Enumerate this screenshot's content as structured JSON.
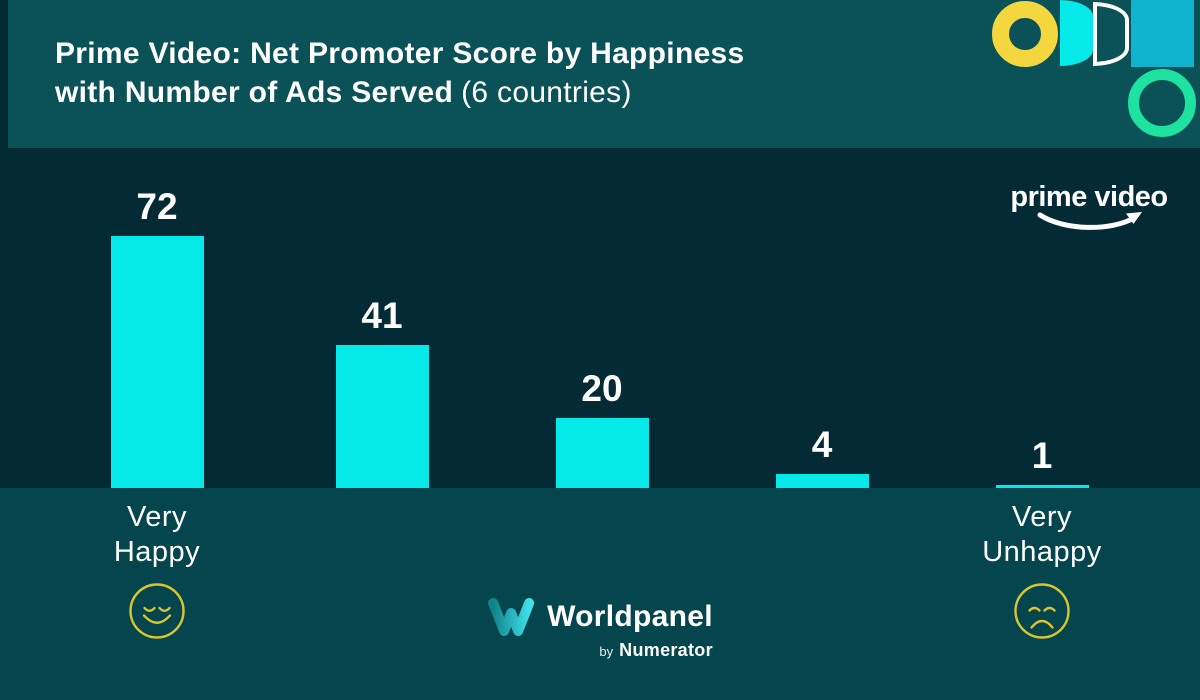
{
  "header": {
    "title_line1": "Prime Video: Net Promoter Score by Happiness",
    "title_line2_bold": "with Number of Ads Served",
    "title_line2_regular": "(6 countries)"
  },
  "chart_data": {
    "type": "bar",
    "title": "Prime Video: Net Promoter Score by Happiness with Number of Ads Served (6 countries)",
    "categories": [
      "Very Happy",
      "",
      "",
      "",
      "Very Unhappy"
    ],
    "values": [
      72,
      41,
      20,
      4,
      1
    ],
    "value_labels": [
      "72",
      "41",
      "20",
      "4",
      "1"
    ],
    "end_labels": {
      "left": {
        "line1": "Very",
        "line2": "Happy"
      },
      "right": {
        "line1": "Very",
        "line2": "Unhappy"
      }
    },
    "xlabel": "",
    "ylim": [
      0,
      80
    ],
    "grid": false,
    "legend": null,
    "bar_color": "#06E9E9"
  },
  "logos": {
    "prime_video_text": "prime video",
    "worldpanel_name": "Worldpanel",
    "worldpanel_by": "by",
    "worldpanel_numerator": "Numerator"
  },
  "colors": {
    "background_dark": "#042B35",
    "header_teal": "#0B5158",
    "band_teal": "#05454E",
    "bar_cyan": "#06E9E9",
    "yellow": "#F4D73E",
    "square_cyan": "#0FB3CE",
    "green": "#1EE2A0",
    "face_yellow": "#D9C62F",
    "white": "#FFFFFF"
  }
}
